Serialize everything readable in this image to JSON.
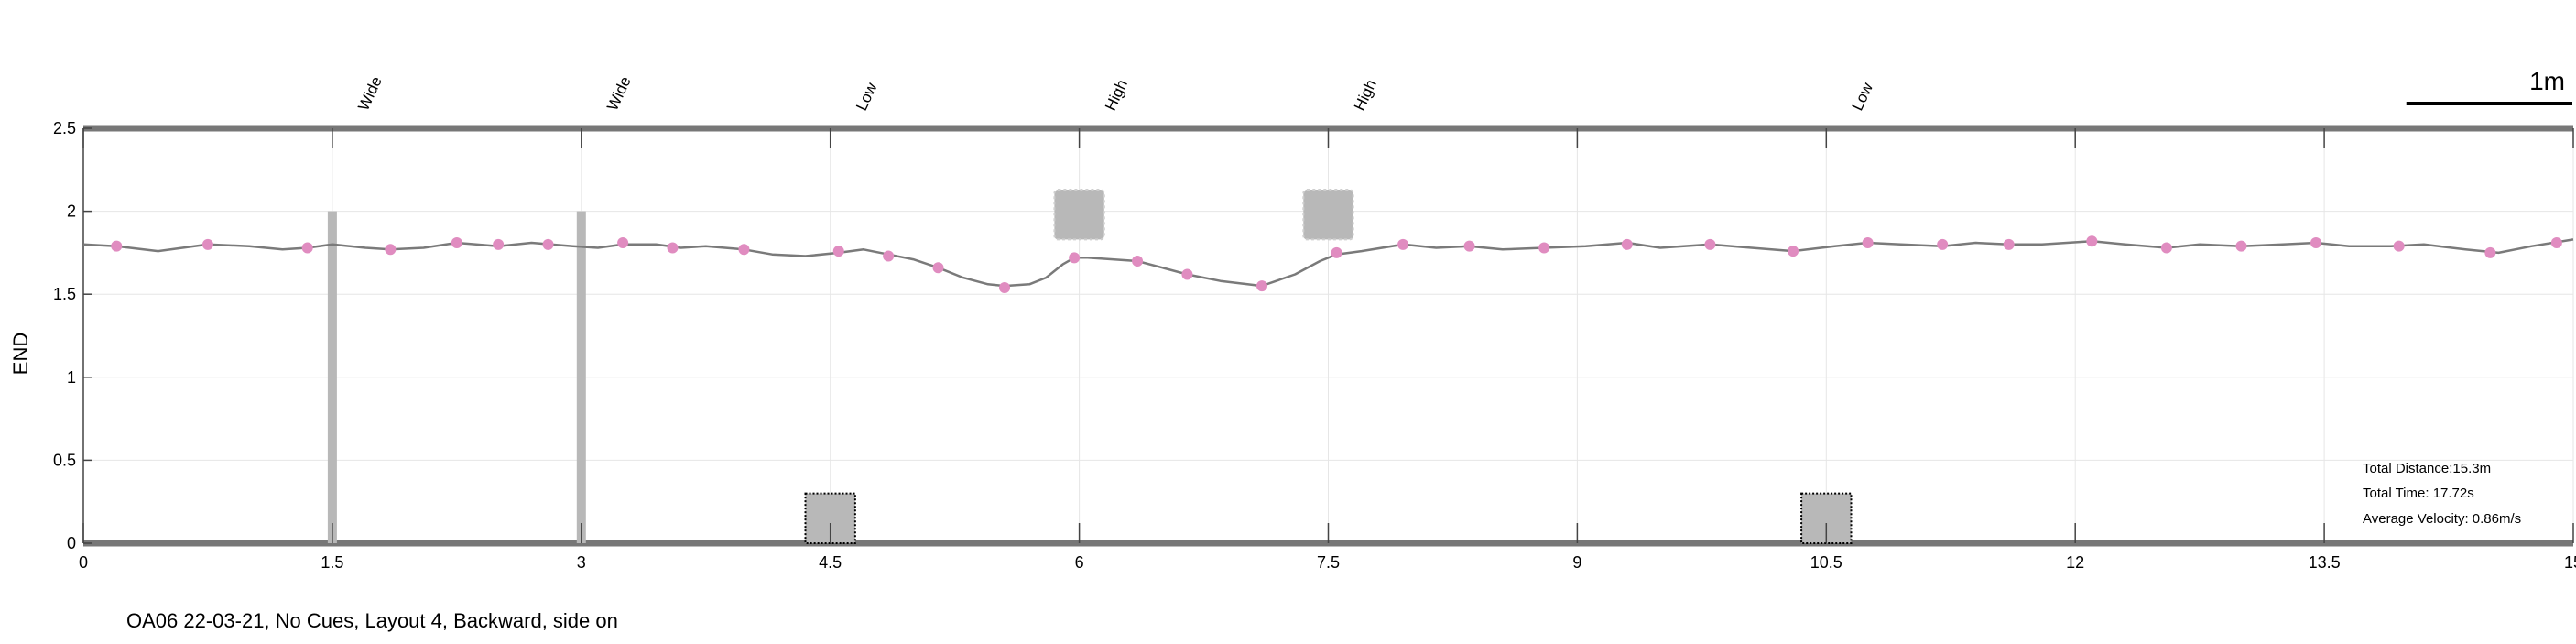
{
  "chart_data": {
    "type": "line",
    "title": "",
    "xlabel": "",
    "ylabel": "END",
    "xlim": [
      0,
      15
    ],
    "ylim": [
      0,
      2.5
    ],
    "x_ticks": [
      0,
      1.5,
      3,
      4.5,
      6,
      7.5,
      9,
      10.5,
      12,
      13.5,
      15
    ],
    "x_tick_labels": [
      "0",
      "1.5",
      "3",
      "4.5",
      "6",
      "7.5",
      "9",
      "10.5",
      "12",
      "13.5",
      "15"
    ],
    "y_ticks": [
      0,
      0.5,
      1,
      1.5,
      2,
      2.5
    ],
    "y_tick_labels": [
      "0",
      "0.5",
      "1",
      "1.5",
      "2",
      "2.5"
    ],
    "grid": true,
    "colors": {
      "trajectory": "#7a7a7a",
      "marker": "#e08cc0",
      "obstacle": "#b8b8b8",
      "frame": "#777777"
    },
    "trajectory": {
      "x": [
        0,
        0.2,
        0.45,
        0.75,
        1.0,
        1.2,
        1.35,
        1.5,
        1.7,
        1.85,
        2.05,
        2.25,
        2.5,
        2.7,
        2.95,
        3.1,
        3.25,
        3.45,
        3.6,
        3.75,
        3.98,
        4.15,
        4.35,
        4.55,
        4.7,
        4.85,
        5.0,
        5.15,
        5.3,
        5.45,
        5.55,
        5.7,
        5.8,
        5.9,
        5.97,
        6.05,
        6.2,
        6.35,
        6.5,
        6.65,
        6.85,
        7.1,
        7.3,
        7.45,
        7.55,
        7.7,
        7.95,
        8.15,
        8.35,
        8.55,
        8.8,
        9.05,
        9.3,
        9.5,
        9.8,
        10.05,
        10.3,
        10.55,
        10.75,
        10.95,
        11.2,
        11.4,
        11.6,
        11.8,
        12.1,
        12.3,
        12.55,
        12.75,
        13.0,
        13.25,
        13.45,
        13.65,
        13.9,
        14.1,
        14.35,
        14.55,
        14.75,
        15.0
      ],
      "y": [
        1.8,
        1.79,
        1.76,
        1.8,
        1.79,
        1.77,
        1.78,
        1.8,
        1.78,
        1.77,
        1.78,
        1.81,
        1.79,
        1.81,
        1.79,
        1.78,
        1.8,
        1.8,
        1.78,
        1.79,
        1.77,
        1.74,
        1.73,
        1.75,
        1.77,
        1.74,
        1.71,
        1.66,
        1.6,
        1.56,
        1.55,
        1.56,
        1.6,
        1.68,
        1.72,
        1.72,
        1.71,
        1.7,
        1.66,
        1.62,
        1.58,
        1.55,
        1.62,
        1.7,
        1.74,
        1.76,
        1.8,
        1.78,
        1.79,
        1.77,
        1.78,
        1.79,
        1.81,
        1.78,
        1.8,
        1.78,
        1.76,
        1.79,
        1.81,
        1.8,
        1.79,
        1.81,
        1.8,
        1.8,
        1.82,
        1.8,
        1.78,
        1.8,
        1.79,
        1.8,
        1.81,
        1.79,
        1.79,
        1.8,
        1.77,
        1.75,
        1.79,
        1.83
      ]
    },
    "markers": {
      "x": [
        0.2,
        0.75,
        1.35,
        1.85,
        2.25,
        2.5,
        2.8,
        3.25,
        3.55,
        3.98,
        4.55,
        4.85,
        5.15,
        5.55,
        5.97,
        6.35,
        6.65,
        7.1,
        7.55,
        7.95,
        8.35,
        8.8,
        9.3,
        9.8,
        10.3,
        10.75,
        11.2,
        11.6,
        12.1,
        12.55,
        13.0,
        13.45,
        13.95,
        14.5,
        14.9
      ],
      "y": [
        1.79,
        1.8,
        1.78,
        1.77,
        1.81,
        1.8,
        1.8,
        1.81,
        1.78,
        1.77,
        1.76,
        1.73,
        1.66,
        1.54,
        1.72,
        1.7,
        1.62,
        1.55,
        1.75,
        1.8,
        1.79,
        1.78,
        1.8,
        1.8,
        1.76,
        1.81,
        1.8,
        1.8,
        1.82,
        1.78,
        1.79,
        1.81,
        1.79,
        1.75,
        1.81
      ]
    },
    "obstacles": [
      {
        "label": "Wide",
        "x": 1.5,
        "kind": "bar",
        "y_range": [
          0,
          2
        ]
      },
      {
        "label": "Wide",
        "x": 3.0,
        "kind": "bar",
        "y_range": [
          0,
          2
        ]
      },
      {
        "label": "Low",
        "x": 4.5,
        "kind": "box",
        "x_range": [
          4.35,
          4.65
        ],
        "y_range": [
          0,
          0.3
        ]
      },
      {
        "label": "High",
        "x": 6.0,
        "kind": "box",
        "x_range": [
          5.85,
          6.15
        ],
        "y_range": [
          1.83,
          2.13
        ]
      },
      {
        "label": "High",
        "x": 7.5,
        "kind": "box",
        "x_range": [
          7.35,
          7.65
        ],
        "y_range": [
          1.83,
          2.13
        ]
      },
      {
        "label": "Low",
        "x": 10.5,
        "kind": "box",
        "x_range": [
          10.35,
          10.65
        ],
        "y_range": [
          0,
          0.3
        ]
      }
    ],
    "scale_bar": {
      "label": "1m",
      "length": 1
    },
    "stats": {
      "distance": "Total Distance:15.3m",
      "time": "Total Time: 17.72s",
      "velocity": "Average Velocity: 0.86m/s"
    }
  },
  "caption": "OA06 22-03-21, No Cues, Layout 4, Backward, side on"
}
